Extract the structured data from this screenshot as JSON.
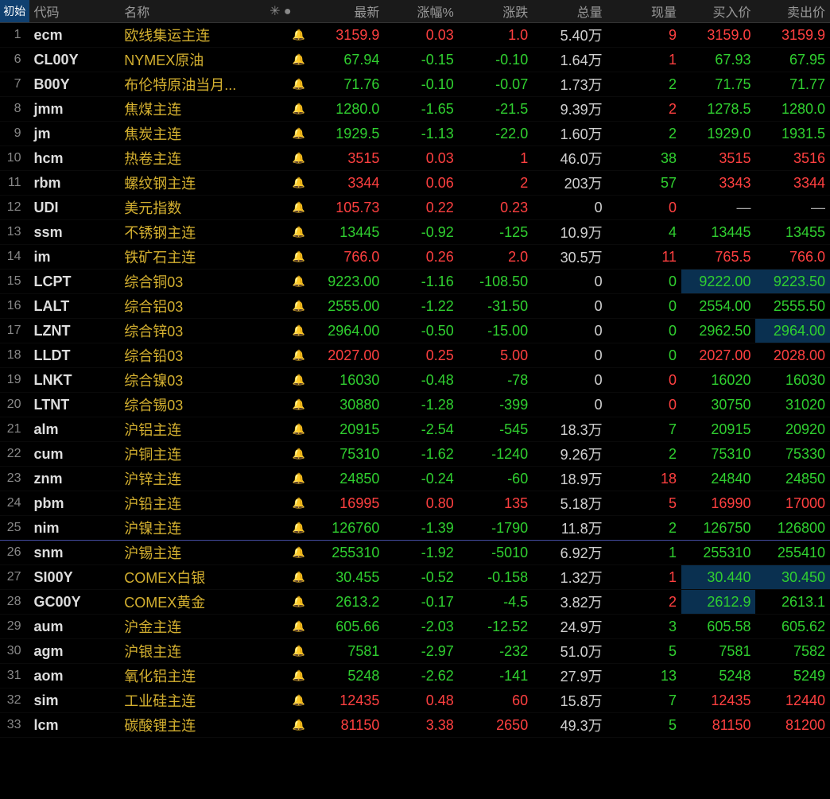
{
  "tab_label": "初始",
  "header_icons": "✳ ●",
  "columns": {
    "code": "代码",
    "name": "名称",
    "last": "最新",
    "pct": "涨幅%",
    "chg": "涨跌",
    "vol": "总量",
    "now": "现量",
    "bid": "买入价",
    "ask": "卖出价"
  },
  "colors": {
    "up": "#ff4040",
    "down": "#30d030",
    "neutral": "#d0d0d0",
    "name": "#d4b030",
    "tab_bg": "#104070",
    "highlight_bg": "#0a3050"
  },
  "rows": [
    {
      "idx": "1",
      "code": "ecm",
      "name": "欧线集运主连",
      "bell": "n",
      "dir": "up",
      "last": "3159.9",
      "pct": "0.03",
      "chg": "1.0",
      "vol": "5.40万",
      "now": "9",
      "nowc": "up",
      "bid": "3159.0",
      "ask": "3159.9"
    },
    {
      "idx": "6",
      "code": "CL00Y",
      "name": "NYMEX原油",
      "bell": "n",
      "dir": "down",
      "last": "67.94",
      "pct": "-0.15",
      "chg": "-0.10",
      "vol": "1.64万",
      "now": "1",
      "nowc": "up",
      "bid": "67.93",
      "ask": "67.95"
    },
    {
      "idx": "7",
      "code": "B00Y",
      "name": "布伦特原油当月...",
      "bell": "n",
      "dir": "down",
      "last": "71.76",
      "pct": "-0.10",
      "chg": "-0.07",
      "vol": "1.73万",
      "now": "2",
      "nowc": "down",
      "bid": "71.75",
      "ask": "71.77"
    },
    {
      "idx": "8",
      "code": "jmm",
      "name": "焦煤主连",
      "bell": "n",
      "dir": "down",
      "last": "1280.0",
      "pct": "-1.65",
      "chg": "-21.5",
      "vol": "9.39万",
      "now": "2",
      "nowc": "up",
      "bid": "1278.5",
      "ask": "1280.0"
    },
    {
      "idx": "9",
      "code": "jm",
      "name": "焦炭主连",
      "bell": "n",
      "dir": "down",
      "last": "1929.5",
      "pct": "-1.13",
      "chg": "-22.0",
      "vol": "1.60万",
      "now": "2",
      "nowc": "down",
      "bid": "1929.0",
      "ask": "1931.5"
    },
    {
      "idx": "10",
      "code": "hcm",
      "name": "热卷主连",
      "bell": "n",
      "dir": "up",
      "last": "3515",
      "pct": "0.03",
      "chg": "1",
      "vol": "46.0万",
      "now": "38",
      "nowc": "down",
      "bid": "3515",
      "ask": "3516"
    },
    {
      "idx": "11",
      "code": "rbm",
      "name": "螺纹钢主连",
      "bell": "n",
      "dir": "up",
      "last": "3344",
      "pct": "0.06",
      "chg": "2",
      "vol": "203万",
      "now": "57",
      "nowc": "down",
      "bid": "3343",
      "ask": "3344"
    },
    {
      "idx": "12",
      "code": "UDI",
      "name": "美元指数",
      "bell": "n",
      "dir": "up",
      "last": "105.73",
      "pct": "0.22",
      "chg": "0.23",
      "vol": "0",
      "now": "0",
      "nowc": "up",
      "bid": "—",
      "ask": "—",
      "dash": true
    },
    {
      "idx": "13",
      "code": "ssm",
      "name": "不锈钢主连",
      "bell": "n",
      "dir": "down",
      "last": "13445",
      "pct": "-0.92",
      "chg": "-125",
      "vol": "10.9万",
      "now": "4",
      "nowc": "down",
      "bid": "13445",
      "ask": "13455"
    },
    {
      "idx": "14",
      "code": "im",
      "name": "铁矿石主连",
      "bell": "n",
      "dir": "up",
      "last": "766.0",
      "pct": "0.26",
      "chg": "2.0",
      "vol": "30.5万",
      "now": "11",
      "nowc": "up",
      "bid": "765.5",
      "ask": "766.0"
    },
    {
      "idx": "15",
      "code": "LCPT",
      "name": "综合铜03",
      "bell": "n",
      "dir": "down",
      "last": "9223.00",
      "pct": "-1.16",
      "chg": "-108.50",
      "vol": "0",
      "now": "0",
      "nowc": "down",
      "bid": "9222.00",
      "ask": "9223.50",
      "bidhl": true,
      "askhl": true
    },
    {
      "idx": "16",
      "code": "LALT",
      "name": "综合铝03",
      "bell": "n",
      "dir": "down",
      "last": "2555.00",
      "pct": "-1.22",
      "chg": "-31.50",
      "vol": "0",
      "now": "0",
      "nowc": "down",
      "bid": "2554.00",
      "ask": "2555.50"
    },
    {
      "idx": "17",
      "code": "LZNT",
      "name": "综合锌03",
      "bell": "n",
      "dir": "down",
      "last": "2964.00",
      "pct": "-0.50",
      "chg": "-15.00",
      "vol": "0",
      "now": "0",
      "nowc": "down",
      "bid": "2962.50",
      "ask": "2964.00",
      "askhl": true
    },
    {
      "idx": "18",
      "code": "LLDT",
      "name": "综合铅03",
      "bell": "n",
      "dir": "up",
      "last": "2027.00",
      "pct": "0.25",
      "chg": "5.00",
      "vol": "0",
      "now": "0",
      "nowc": "down",
      "bid": "2027.00",
      "ask": "2028.00"
    },
    {
      "idx": "19",
      "code": "LNKT",
      "name": "综合镍03",
      "bell": "n",
      "dir": "down",
      "last": "16030",
      "pct": "-0.48",
      "chg": "-78",
      "vol": "0",
      "now": "0",
      "nowc": "up",
      "bid": "16020",
      "ask": "16030"
    },
    {
      "idx": "20",
      "code": "LTNT",
      "name": "综合锡03",
      "bell": "n",
      "dir": "down",
      "last": "30880",
      "pct": "-1.28",
      "chg": "-399",
      "vol": "0",
      "now": "0",
      "nowc": "up",
      "bid": "30750",
      "ask": "31020"
    },
    {
      "idx": "21",
      "code": "alm",
      "name": "沪铝主连",
      "bell": "n",
      "dir": "down",
      "last": "20915",
      "pct": "-2.54",
      "chg": "-545",
      "vol": "18.3万",
      "now": "7",
      "nowc": "down",
      "bid": "20915",
      "ask": "20920"
    },
    {
      "idx": "22",
      "code": "cum",
      "name": "沪铜主连",
      "bell": "a",
      "dir": "down",
      "last": "75310",
      "pct": "-1.62",
      "chg": "-1240",
      "vol": "9.26万",
      "now": "2",
      "nowc": "down",
      "bid": "75310",
      "ask": "75330"
    },
    {
      "idx": "23",
      "code": "znm",
      "name": "沪锌主连",
      "bell": "n",
      "dir": "down",
      "last": "24850",
      "pct": "-0.24",
      "chg": "-60",
      "vol": "18.9万",
      "now": "18",
      "nowc": "up",
      "bid": "24840",
      "ask": "24850"
    },
    {
      "idx": "24",
      "code": "pbm",
      "name": "沪铅主连",
      "bell": "n",
      "dir": "up",
      "last": "16995",
      "pct": "0.80",
      "chg": "135",
      "vol": "5.18万",
      "now": "5",
      "nowc": "up",
      "bid": "16990",
      "ask": "17000"
    },
    {
      "idx": "25",
      "code": "nim",
      "name": "沪镍主连",
      "bell": "n",
      "dir": "down",
      "last": "126760",
      "pct": "-1.39",
      "chg": "-1790",
      "vol": "11.8万",
      "now": "2",
      "nowc": "down",
      "bid": "126750",
      "ask": "126800",
      "divider_after": true
    },
    {
      "idx": "26",
      "code": "snm",
      "name": "沪锡主连",
      "bell": "n",
      "dir": "down",
      "last": "255310",
      "pct": "-1.92",
      "chg": "-5010",
      "vol": "6.92万",
      "now": "1",
      "nowc": "down",
      "bid": "255310",
      "ask": "255410"
    },
    {
      "idx": "27",
      "code": "SI00Y",
      "name": "COMEX白银",
      "bell": "a",
      "dir": "down",
      "last": "30.455",
      "pct": "-0.52",
      "chg": "-0.158",
      "vol": "1.32万",
      "now": "1",
      "nowc": "up",
      "bid": "30.440",
      "ask": "30.450",
      "bidhl": true,
      "askhl": true
    },
    {
      "idx": "28",
      "code": "GC00Y",
      "name": "COMEX黄金",
      "bell": "n",
      "dir": "down",
      "last": "2613.2",
      "pct": "-0.17",
      "chg": "-4.5",
      "vol": "3.82万",
      "now": "2",
      "nowc": "up",
      "bid": "2612.9",
      "ask": "2613.1",
      "bidhl": true
    },
    {
      "idx": "29",
      "code": "aum",
      "name": "沪金主连",
      "bell": "a",
      "dir": "down",
      "last": "605.66",
      "pct": "-2.03",
      "chg": "-12.52",
      "vol": "24.9万",
      "now": "3",
      "nowc": "down",
      "bid": "605.58",
      "ask": "605.62"
    },
    {
      "idx": "30",
      "code": "agm",
      "name": "沪银主连",
      "bell": "n",
      "dir": "down",
      "last": "7581",
      "pct": "-2.97",
      "chg": "-232",
      "vol": "51.0万",
      "now": "5",
      "nowc": "down",
      "bid": "7581",
      "ask": "7582"
    },
    {
      "idx": "31",
      "code": "aom",
      "name": "氧化铝主连",
      "bell": "n",
      "dir": "down",
      "last": "5248",
      "pct": "-2.62",
      "chg": "-141",
      "vol": "27.9万",
      "now": "13",
      "nowc": "down",
      "bid": "5248",
      "ask": "5249"
    },
    {
      "idx": "32",
      "code": "sim",
      "name": "工业硅主连",
      "bell": "n",
      "dir": "up",
      "last": "12435",
      "pct": "0.48",
      "chg": "60",
      "vol": "15.8万",
      "now": "7",
      "nowc": "down",
      "bid": "12435",
      "ask": "12440"
    },
    {
      "idx": "33",
      "code": "lcm",
      "name": "碳酸锂主连",
      "bell": "n",
      "dir": "up",
      "last": "81150",
      "pct": "3.38",
      "chg": "2650",
      "vol": "49.3万",
      "now": "5",
      "nowc": "down",
      "bid": "81150",
      "ask": "81200"
    }
  ]
}
